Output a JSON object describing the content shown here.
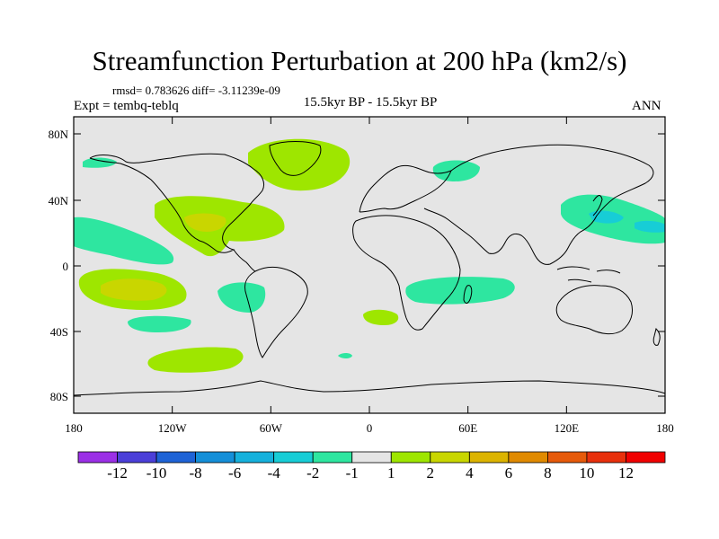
{
  "title": "Streamfunction Perturbation at 200 hPa (km2/s)",
  "stats_line": "rmsd= 0.783626 diff= -3.11239e-09",
  "left_label": "Expt = tembq-teblq",
  "center_label": "15.5kyr BP - 15.5kyr BP",
  "right_label": "ANN",
  "lat_labels": [
    "80N",
    "40N",
    "0",
    "40S",
    "80S"
  ],
  "lon_labels": [
    "180",
    "120W",
    "60W",
    "0",
    "60E",
    "120E",
    "180"
  ],
  "colorbar": {
    "labels": [
      "-12",
      "-10",
      "-8",
      "-6",
      "-4",
      "-2",
      "-1",
      "1",
      "2",
      "4",
      "6",
      "8",
      "10",
      "12"
    ],
    "colors": [
      "#9b30e6",
      "#4b3fd8",
      "#1e63d6",
      "#148fd8",
      "#15b1dc",
      "#17cdd6",
      "#2ee6a0",
      "#e5e5e5",
      "#9ee600",
      "#c9d600",
      "#dcb400",
      "#e08a00",
      "#e65a0a",
      "#e8300c",
      "#f00000"
    ]
  },
  "colors": {
    "background": "#e5e5e5",
    "positive_level1": "#9ee600",
    "positive_level2": "#c9d600",
    "negative_level1": "#2ee6a0",
    "negative_level2": "#17cdd6"
  }
}
